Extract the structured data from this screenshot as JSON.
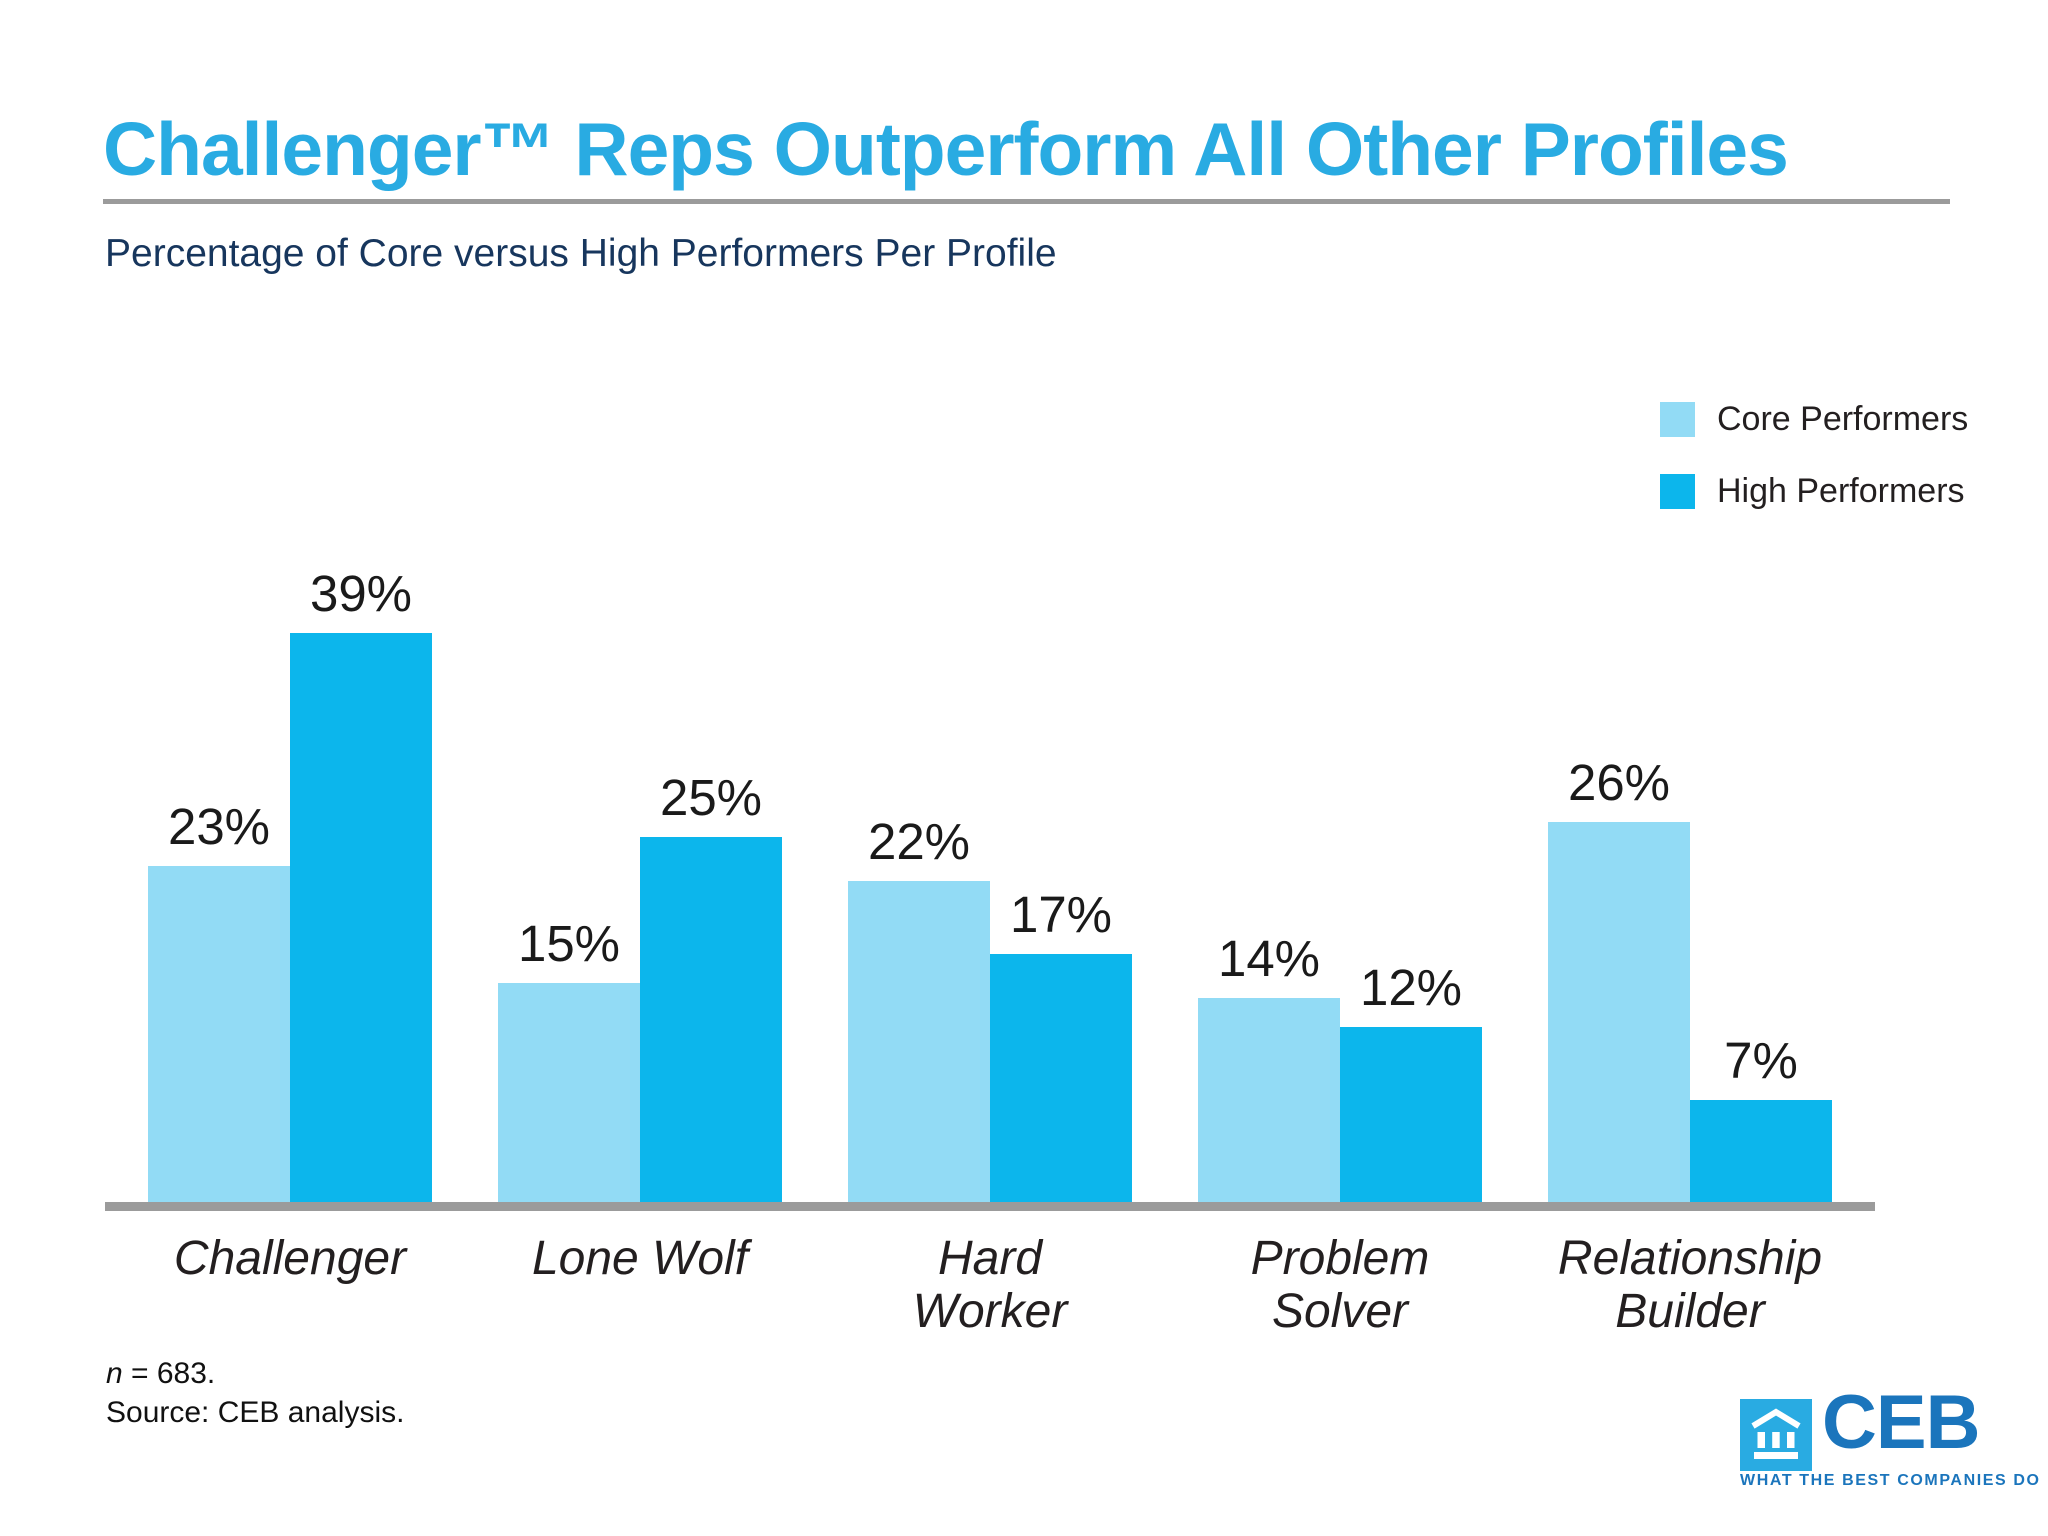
{
  "header": {
    "title": "Challenger™ Reps Outperform All Other Profiles",
    "title_color": "#29ABE2",
    "rule_color": "#9B9B9B",
    "subtitle": "Percentage of Core versus High Performers Per Profile",
    "subtitle_color": "#17365D"
  },
  "legend": {
    "items": [
      {
        "label": "Core Performers",
        "color": "#92DBF5"
      },
      {
        "label": "High Performers",
        "color": "#0CB6EC"
      }
    ]
  },
  "chart_data": {
    "type": "bar",
    "title": "Challenger™ Reps Outperform All Other Profiles",
    "subtitle": "Percentage of Core versus High Performers Per Profile",
    "categories": [
      "Challenger",
      "Lone Wolf",
      "Hard Worker",
      "Problem Solver",
      "Relationship Builder"
    ],
    "label_lines": [
      [
        "Challenger"
      ],
      [
        "Lone Wolf"
      ],
      [
        "Hard",
        "Worker"
      ],
      [
        "Problem",
        "Solver"
      ],
      [
        "Relationship",
        "Builder"
      ]
    ],
    "series": [
      {
        "key": "core",
        "name": "Core Performers",
        "color": "#92DBF5",
        "values": [
          23,
          15,
          22,
          14,
          26
        ]
      },
      {
        "key": "high",
        "name": "High Performers",
        "color": "#0CB6EC",
        "values": [
          39,
          25,
          17,
          12,
          7
        ]
      }
    ],
    "value_suffix": "%",
    "data_labels": [
      "23%",
      "39%",
      "15%",
      "25%",
      "22%",
      "17%",
      "14%",
      "12%",
      "26%",
      "7%"
    ],
    "xlabel": "",
    "ylabel": "",
    "ylim": [
      0,
      40
    ],
    "grid": false,
    "y_axis_visible": false,
    "legend_position": "top-right",
    "axis_color": "#9B9B9B"
  },
  "footnotes": {
    "n_italic": "n",
    "n_rest": " = 683.",
    "source": "Source: CEB analysis."
  },
  "logo": {
    "text": "CEB",
    "tagline": "WHAT THE BEST COMPANIES DO",
    "square_color": "#29ABE2",
    "text_color": "#1B75BC"
  }
}
